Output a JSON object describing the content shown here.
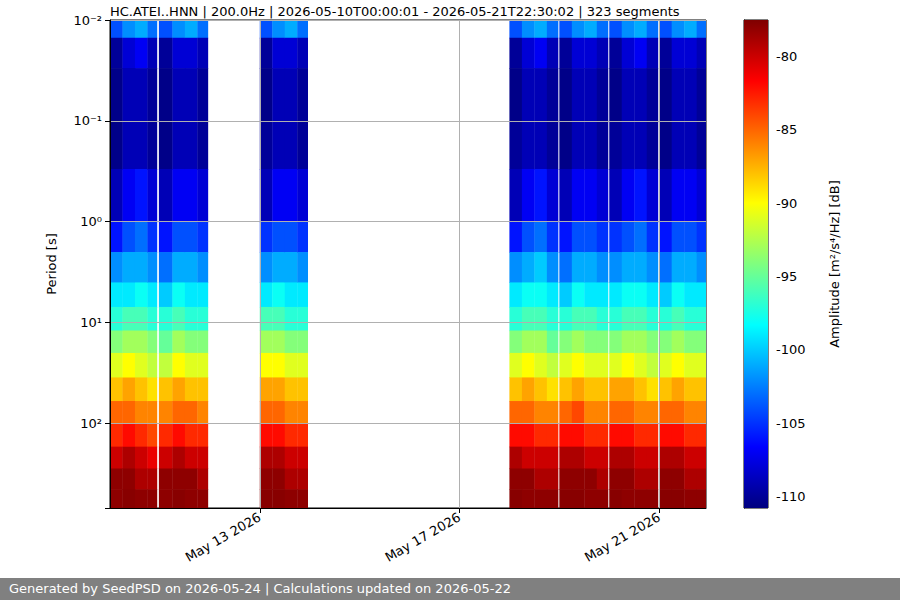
{
  "chart_data": {
    "type": "heatmap",
    "title": "HC.ATEI..HNN | 200.0Hz | 2026-05-10T00:00:01 - 2026-05-21T22:30:02 | 323 segments",
    "ylabel": "Period [s]",
    "footer": "Generated by SeedPSD on 2026-05-24 | Calculations updated on 2026-05-22",
    "log": "y",
    "grid": true,
    "xlim": [
      "2026-05-10T00:00:01",
      "2026-05-21T22:30:02"
    ],
    "xticks": [
      {
        "value": "2026-05-13T00:00",
        "label": "May 13 2026"
      },
      {
        "value": "2026-05-17T00:00",
        "label": "May 17 2026"
      },
      {
        "value": "2026-05-21T00:00",
        "label": "May 21 2026"
      }
    ],
    "ylim": [
      0.01,
      690
    ],
    "yticks": [
      {
        "value": 0.01,
        "label": "10⁻²"
      },
      {
        "value": 0.1,
        "label": "10⁻¹"
      },
      {
        "value": 1,
        "label": "10⁰"
      },
      {
        "value": 10,
        "label": "10¹"
      },
      {
        "value": 100,
        "label": "10²"
      }
    ],
    "y_bins": [
      0.01,
      0.015,
      0.03,
      0.1,
      0.3,
      1,
      2,
      4,
      7,
      12,
      20,
      35,
      60,
      100,
      170,
      280,
      450,
      690
    ],
    "x": [
      [
        "2026-05-10T00:00",
        "2026-05-10T06:00"
      ],
      [
        "2026-05-10T06:00",
        "2026-05-10T12:00"
      ],
      [
        "2026-05-10T12:00",
        "2026-05-10T18:00"
      ],
      [
        "2026-05-10T18:00",
        "2026-05-10T22:30"
      ],
      [
        "2026-05-10T23:30",
        "2026-05-11T06:00"
      ],
      [
        "2026-05-11T06:00",
        "2026-05-11T12:00"
      ],
      [
        "2026-05-11T12:00",
        "2026-05-11T18:00"
      ],
      [
        "2026-05-11T18:00",
        "2026-05-11T23:00"
      ],
      [
        "2026-05-13T00:00",
        "2026-05-13T06:00"
      ],
      [
        "2026-05-13T06:00",
        "2026-05-13T12:00"
      ],
      [
        "2026-05-13T12:00",
        "2026-05-13T18:00"
      ],
      [
        "2026-05-13T18:00",
        "2026-05-13T23:00"
      ],
      [
        "2026-05-18T00:00",
        "2026-05-18T06:00"
      ],
      [
        "2026-05-18T06:00",
        "2026-05-18T12:00"
      ],
      [
        "2026-05-18T12:00",
        "2026-05-18T18:00"
      ],
      [
        "2026-05-18T18:00",
        "2026-05-18T23:20"
      ],
      [
        "2026-05-19T00:00",
        "2026-05-19T06:00"
      ],
      [
        "2026-05-19T06:00",
        "2026-05-19T12:00"
      ],
      [
        "2026-05-19T12:00",
        "2026-05-19T18:00"
      ],
      [
        "2026-05-19T18:00",
        "2026-05-19T23:20"
      ],
      [
        "2026-05-20T00:00",
        "2026-05-20T06:00"
      ],
      [
        "2026-05-20T06:00",
        "2026-05-20T12:00"
      ],
      [
        "2026-05-20T12:00",
        "2026-05-20T18:00"
      ],
      [
        "2026-05-20T18:00",
        "2026-05-20T23:20"
      ],
      [
        "2026-05-21T00:00",
        "2026-05-21T06:00"
      ],
      [
        "2026-05-21T06:00",
        "2026-05-21T12:00"
      ],
      [
        "2026-05-21T12:00",
        "2026-05-21T18:00"
      ],
      [
        "2026-05-21T18:00",
        "2026-05-21T22:30"
      ]
    ],
    "values": [
      [
        -104,
        -110,
        -110.5,
        -110.5,
        -109,
        -106,
        -102,
        -99,
        -97,
        -94,
        -91,
        -88,
        -85,
        -83,
        -80,
        -78,
        -78
      ],
      [
        -102,
        -108,
        -109,
        -109,
        -107,
        -104,
        -101,
        -99,
        -96,
        -93,
        -90,
        -87,
        -85,
        -82,
        -79,
        -78,
        -77.8
      ],
      [
        -101,
        -107,
        -109,
        -109,
        -106,
        -103,
        -101,
        -98,
        -96,
        -93,
        -91,
        -88,
        -86,
        -83,
        -80,
        -79,
        -78
      ],
      [
        -103,
        -109,
        -110,
        -110,
        -108,
        -105,
        -102,
        -99,
        -97,
        -94,
        -92,
        -89,
        -86,
        -84,
        -81,
        -79,
        -78
      ],
      [
        -104,
        -110,
        -110.5,
        -110.5,
        -109,
        -106,
        -103,
        -100,
        -97,
        -95,
        -92,
        -88,
        -86,
        -83,
        -80,
        -78,
        -78
      ],
      [
        -102,
        -108,
        -109,
        -109,
        -107,
        -104,
        -101,
        -98,
        -96,
        -93,
        -90,
        -87,
        -85,
        -82,
        -79,
        -78,
        -77.8
      ],
      [
        -101,
        -108,
        -109,
        -109,
        -107,
        -104,
        -101,
        -99,
        -97,
        -94,
        -91,
        -88,
        -85,
        -83,
        -80,
        -78,
        -78
      ],
      [
        -103,
        -109,
        -110,
        -110,
        -108,
        -105,
        -102,
        -99,
        -97,
        -94,
        -91,
        -88,
        -86,
        -83,
        -80,
        -79,
        -78
      ],
      [
        -104,
        -110,
        -110.5,
        -110,
        -109,
        -105,
        -102,
        -99,
        -96,
        -93,
        -90,
        -87,
        -85,
        -82,
        -79,
        -78,
        -77.8
      ],
      [
        -102,
        -108,
        -109,
        -109,
        -107,
        -104,
        -101,
        -98,
        -96,
        -93,
        -90,
        -87,
        -85,
        -82,
        -79,
        -78,
        -77.8
      ],
      [
        -101,
        -108,
        -109,
        -109,
        -107,
        -104,
        -101,
        -99,
        -97,
        -94,
        -91,
        -88,
        -86,
        -83,
        -80,
        -79,
        -78
      ],
      [
        -103,
        -109,
        -110,
        -110,
        -108,
        -105,
        -102,
        -99,
        -97,
        -94,
        -91,
        -88,
        -86,
        -83,
        -80,
        -79,
        -78
      ],
      [
        -104,
        -110,
        -110.5,
        -110,
        -109,
        -106,
        -102,
        -99,
        -97,
        -94,
        -91,
        -88,
        -85,
        -82,
        -79,
        -78,
        -77.8
      ],
      [
        -102,
        -108,
        -109,
        -109,
        -107,
        -104,
        -101,
        -98,
        -96,
        -93,
        -90,
        -87,
        -85,
        -82,
        -80,
        -78,
        -78
      ],
      [
        -101,
        -107,
        -109,
        -109,
        -106,
        -103,
        -100,
        -98,
        -96,
        -93,
        -91,
        -88,
        -86,
        -83,
        -80,
        -79,
        -78
      ],
      [
        -103,
        -109,
        -110,
        -110,
        -108,
        -105,
        -102,
        -99,
        -97,
        -95,
        -92,
        -89,
        -86,
        -83,
        -80,
        -79,
        -78
      ],
      [
        -104,
        -110,
        -110.5,
        -110.5,
        -109,
        -106,
        -103,
        -100,
        -97,
        -94,
        -91,
        -88,
        -85,
        -82,
        -79,
        -78,
        -77.8
      ],
      [
        -102,
        -108,
        -109,
        -109,
        -107,
        -104,
        -101,
        -98,
        -96,
        -93,
        -90,
        -87,
        -84,
        -82,
        -79,
        -78,
        -77.8
      ],
      [
        -101,
        -108,
        -109,
        -109,
        -107,
        -104,
        -101,
        -99,
        -96,
        -94,
        -91,
        -88,
        -86,
        -83,
        -80,
        -78,
        -78
      ],
      [
        -103,
        -109,
        -110,
        -110,
        -108,
        -105,
        -102,
        -99,
        -97,
        -94,
        -91,
        -88,
        -86,
        -83,
        -80,
        -79,
        -78
      ],
      [
        -104,
        -110,
        -110.5,
        -110,
        -109,
        -105,
        -102,
        -99,
        -97,
        -94,
        -91,
        -87,
        -85,
        -82,
        -79,
        -78,
        -77.8
      ],
      [
        -102,
        -108,
        -109,
        -109,
        -107,
        -104,
        -101,
        -98,
        -96,
        -93,
        -90,
        -87,
        -85,
        -82,
        -79,
        -78,
        -78
      ],
      [
        -101,
        -107,
        -109,
        -109,
        -106,
        -103,
        -101,
        -98,
        -96,
        -93,
        -91,
        -88,
        -86,
        -83,
        -80,
        -79,
        -78
      ],
      [
        -103,
        -109,
        -110,
        -110,
        -108,
        -105,
        -102,
        -99,
        -97,
        -94,
        -92,
        -89,
        -86,
        -83,
        -80,
        -79,
        -78
      ],
      [
        -104,
        -110,
        -110.5,
        -110.5,
        -109,
        -106,
        -103,
        -100,
        -97,
        -94,
        -91,
        -88,
        -85,
        -82,
        -79,
        -78,
        -77.8
      ],
      [
        -102,
        -108,
        -109,
        -109,
        -107,
        -104,
        -101,
        -98,
        -96,
        -93,
        -90,
        -87,
        -85,
        -82,
        -79,
        -78,
        -77.8
      ],
      [
        -101,
        -108,
        -109,
        -109,
        -107,
        -104,
        -101,
        -99,
        -97,
        -94,
        -91,
        -88,
        -86,
        -83,
        -80,
        -79,
        -78
      ],
      [
        -103,
        -109,
        -110,
        -110,
        -108,
        -105,
        -102,
        -99,
        -97,
        -94,
        -91,
        -88,
        -86,
        -83,
        -80,
        -79,
        -78
      ]
    ],
    "colorbar": {
      "label": "Amplitude [m²/s⁴/Hz] [dB]",
      "range": [
        -110.8,
        -77.5
      ],
      "ticks": [
        -110,
        -105,
        -100,
        -95,
        -90,
        -85,
        -80
      ]
    }
  }
}
